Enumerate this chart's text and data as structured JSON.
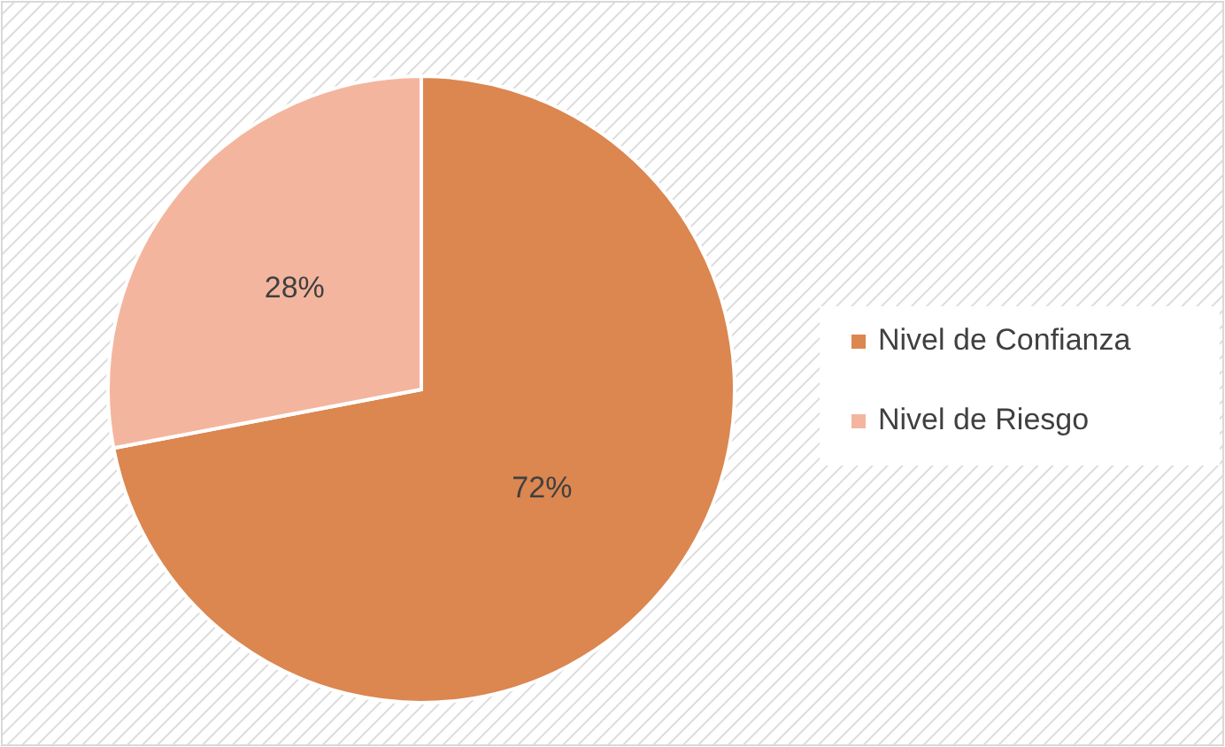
{
  "chart_data": {
    "type": "pie",
    "categories": [
      "Nivel de Confianza",
      "Nivel de Riesgo"
    ],
    "values": [
      72,
      28
    ],
    "colors": [
      "#dc8650",
      "#f4b59e"
    ],
    "value_labels": [
      "72%",
      "28%"
    ],
    "legend": "right"
  }
}
